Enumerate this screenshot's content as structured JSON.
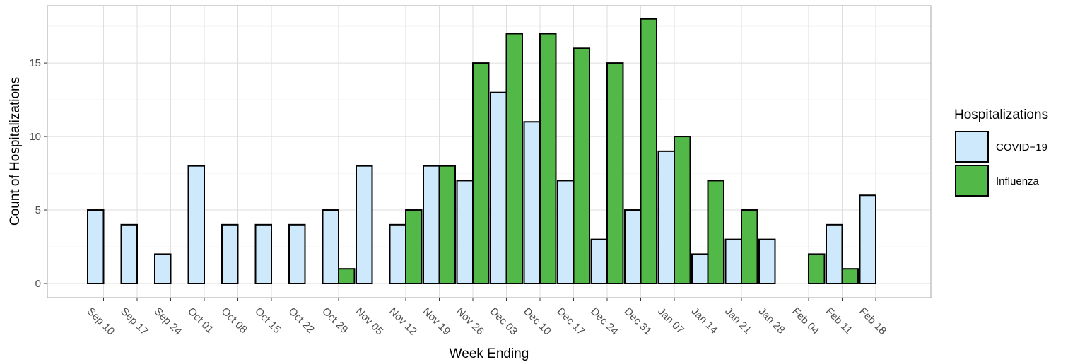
{
  "chart_data": {
    "type": "bar",
    "xlabel": "Week Ending",
    "ylabel": "Count of Hospitalizations",
    "ylim": [
      0,
      18.9
    ],
    "yticks": [
      0,
      5,
      10,
      15
    ],
    "grid": true,
    "legend_position": "right",
    "legend_title": "Hospitalizations",
    "categories": [
      "Sep 10",
      "Sep 17",
      "Sep 24",
      "Oct 01",
      "Oct 08",
      "Oct 15",
      "Oct 22",
      "Oct 29",
      "Nov 05",
      "Nov 12",
      "Nov 19",
      "Nov 26",
      "Dec 03",
      "Dec 10",
      "Dec 17",
      "Dec 24",
      "Dec 31",
      "Jan 07",
      "Jan 14",
      "Jan 21",
      "Jan 28",
      "Feb 04",
      "Feb 11",
      "Feb 18"
    ],
    "series": [
      {
        "name": "COVID−19",
        "color": "#cde9fb",
        "values": [
          5,
          4,
          2,
          8,
          4,
          4,
          4,
          5,
          8,
          4,
          8,
          7,
          13,
          11,
          7,
          3,
          5,
          9,
          2,
          3,
          3,
          0,
          4,
          6
        ]
      },
      {
        "name": "Influenza",
        "color": "#52b848",
        "values": [
          0,
          0,
          0,
          0,
          0,
          0,
          0,
          1,
          0,
          5,
          8,
          15,
          17,
          17,
          16,
          15,
          18,
          10,
          7,
          5,
          0,
          2,
          1,
          0
        ]
      }
    ]
  }
}
